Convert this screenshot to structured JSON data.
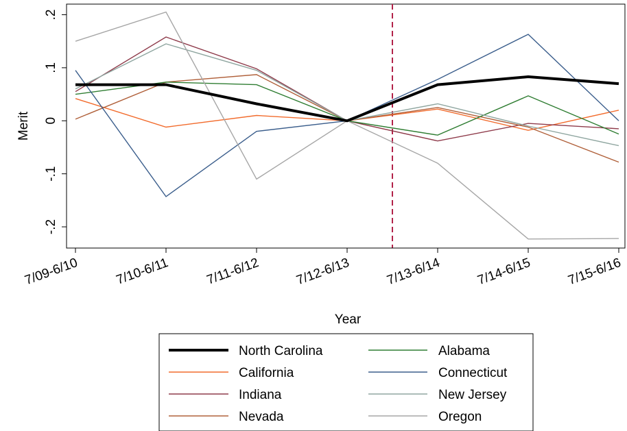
{
  "chart_data": {
    "type": "line",
    "title": "",
    "xlabel": "Year",
    "ylabel": "Merit",
    "categories": [
      "7/09-6/10",
      "7/10-6/11",
      "7/11-6/12",
      "7/12-6/13",
      "7/13-6/14",
      "7/14-6/15",
      "7/15-6/16"
    ],
    "yticks": [
      -0.2,
      -0.1,
      0,
      0.1,
      0.2
    ],
    "ytick_labels": [
      "-.2",
      "-.1",
      "0",
      ".1",
      ".2"
    ],
    "ylim": [
      -0.24,
      0.22
    ],
    "grid": false,
    "legend_position": "bottom",
    "reference_line": {
      "between": [
        "7/12-6/13",
        "7/13-6/14"
      ],
      "style": "dashed",
      "color": "#b22249"
    },
    "series": [
      {
        "name": "North Carolina",
        "color": "#000000",
        "width": 4,
        "values": [
          0.068,
          0.068,
          0.032,
          0.0,
          0.068,
          0.083,
          0.07
        ]
      },
      {
        "name": "California",
        "color": "#f26b2c",
        "width": 1.4,
        "values": [
          0.042,
          -0.012,
          0.01,
          0.0,
          0.022,
          -0.018,
          0.02
        ]
      },
      {
        "name": "Indiana",
        "color": "#8e3a4a",
        "width": 1.4,
        "values": [
          0.055,
          0.158,
          0.098,
          0.0,
          -0.038,
          -0.005,
          -0.015
        ]
      },
      {
        "name": "Nevada",
        "color": "#b0603a",
        "width": 1.4,
        "values": [
          0.003,
          0.073,
          0.087,
          0.0,
          0.025,
          -0.012,
          -0.078
        ]
      },
      {
        "name": "Alabama",
        "color": "#2f7d32",
        "width": 1.4,
        "values": [
          0.05,
          0.073,
          0.068,
          0.0,
          -0.027,
          0.047,
          -0.025
        ]
      },
      {
        "name": "Connecticut",
        "color": "#3b5e8c",
        "width": 1.4,
        "values": [
          0.095,
          -0.143,
          -0.02,
          0.0,
          0.078,
          0.163,
          0.0
        ]
      },
      {
        "name": "New Jersey",
        "color": "#8fa6a0",
        "width": 1.4,
        "values": [
          0.06,
          0.145,
          0.095,
          0.0,
          0.032,
          -0.01,
          -0.047
        ]
      },
      {
        "name": "Oregon",
        "color": "#a6a6a6",
        "width": 1.4,
        "values": [
          0.15,
          0.205,
          -0.11,
          0.0,
          -0.08,
          -0.223,
          -0.222
        ]
      }
    ]
  }
}
